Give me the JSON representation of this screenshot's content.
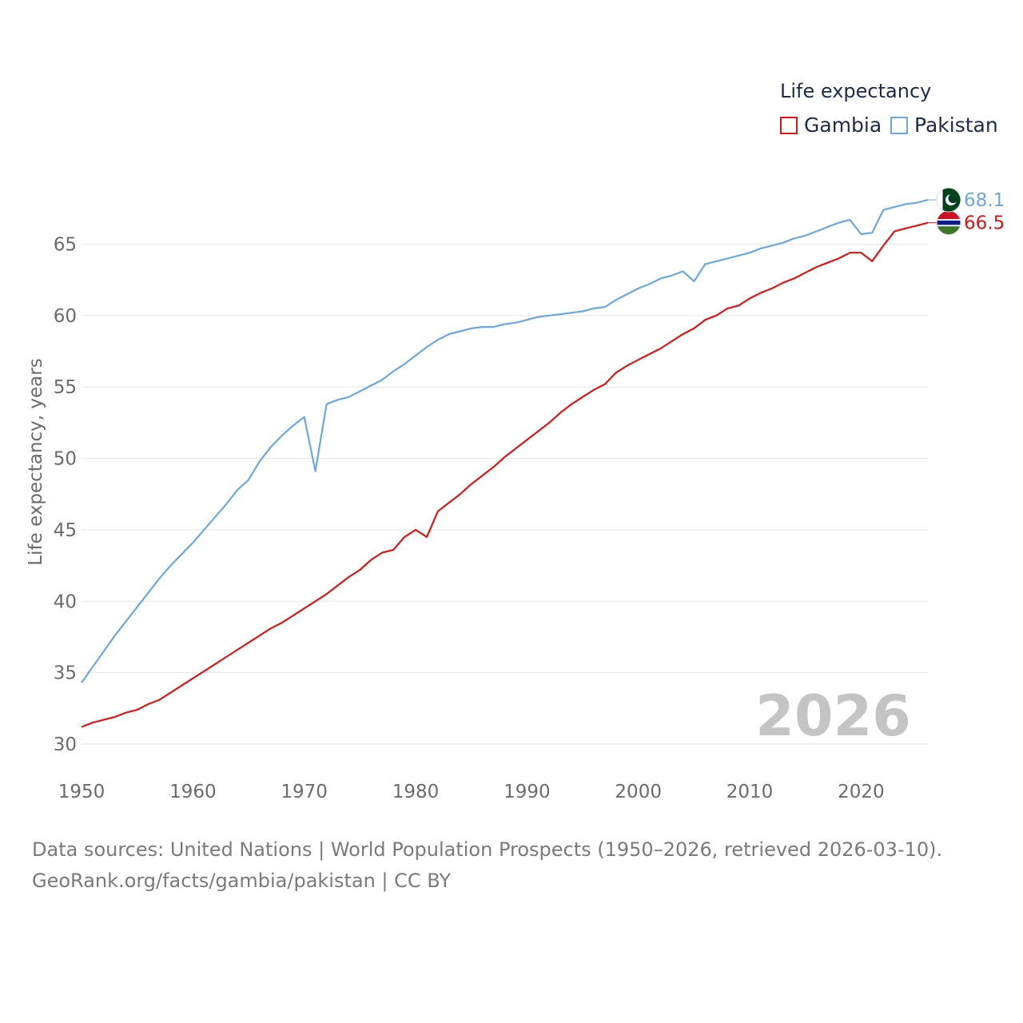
{
  "chart_data": {
    "type": "line",
    "ylabel": "Life expectancy, years",
    "xlabel": "",
    "xlim": [
      1950,
      2026
    ],
    "ylim": [
      30,
      69
    ],
    "x_ticks": [
      1950,
      1960,
      1970,
      1980,
      1990,
      2000,
      2010,
      2020
    ],
    "y_ticks": [
      30,
      35,
      40,
      45,
      50,
      55,
      60,
      65
    ],
    "grid": true,
    "year_label": "2026",
    "legend": {
      "title": "Life expectancy",
      "placement": "top-right"
    },
    "x": [
      1950,
      1951,
      1952,
      1953,
      1954,
      1955,
      1956,
      1957,
      1958,
      1959,
      1960,
      1961,
      1962,
      1963,
      1964,
      1965,
      1966,
      1967,
      1968,
      1969,
      1970,
      1971,
      1972,
      1973,
      1974,
      1975,
      1976,
      1977,
      1978,
      1979,
      1980,
      1981,
      1982,
      1983,
      1984,
      1985,
      1986,
      1987,
      1988,
      1989,
      1990,
      1991,
      1992,
      1993,
      1994,
      1995,
      1996,
      1997,
      1998,
      1999,
      2000,
      2001,
      2002,
      2003,
      2004,
      2005,
      2006,
      2007,
      2008,
      2009,
      2010,
      2011,
      2012,
      2013,
      2014,
      2015,
      2016,
      2017,
      2018,
      2019,
      2020,
      2021,
      2022,
      2023,
      2024,
      2025,
      2026
    ],
    "series": [
      {
        "name": "Gambia",
        "color": "#e11414",
        "end_label": "66.5",
        "flag": "gambia-flag",
        "values": [
          31.2,
          31.5,
          31.7,
          31.9,
          32.2,
          32.4,
          32.8,
          33.1,
          33.6,
          34.1,
          34.6,
          35.1,
          35.6,
          36.1,
          36.6,
          37.1,
          37.6,
          38.1,
          38.5,
          39.0,
          39.5,
          40.0,
          40.5,
          41.1,
          41.7,
          42.2,
          42.9,
          43.4,
          43.6,
          44.5,
          45.0,
          44.5,
          46.3,
          46.9,
          47.5,
          48.2,
          48.8,
          49.4,
          50.1,
          50.7,
          51.3,
          51.9,
          52.5,
          53.2,
          53.8,
          54.3,
          54.8,
          55.2,
          56.0,
          56.5,
          56.9,
          57.3,
          57.7,
          58.2,
          58.7,
          59.1,
          59.7,
          60.0,
          60.5,
          60.7,
          61.2,
          61.6,
          61.9,
          62.3,
          62.6,
          63.0,
          63.4,
          63.7,
          64.0,
          64.4,
          64.4,
          63.8,
          64.9,
          65.9,
          66.1,
          66.3,
          66.5
        ]
      },
      {
        "name": "Pakistan",
        "color": "#6aa8e4",
        "end_label": "68.1",
        "flag": "pakistan-flag",
        "values": [
          34.3,
          35.4,
          36.5,
          37.6,
          38.6,
          39.6,
          40.6,
          41.6,
          42.5,
          43.3,
          44.1,
          45.0,
          45.9,
          46.8,
          47.8,
          48.5,
          49.8,
          50.8,
          51.6,
          52.3,
          52.9,
          49.1,
          53.8,
          54.1,
          54.3,
          54.7,
          55.1,
          55.5,
          56.1,
          56.6,
          57.2,
          57.8,
          58.3,
          58.7,
          58.9,
          59.1,
          59.2,
          59.2,
          59.4,
          59.5,
          59.7,
          59.9,
          60.0,
          60.1,
          60.2,
          60.3,
          60.5,
          60.6,
          61.1,
          61.5,
          61.9,
          62.2,
          62.6,
          62.8,
          63.1,
          62.4,
          63.6,
          63.8,
          64.0,
          64.2,
          64.4,
          64.7,
          64.9,
          65.1,
          65.4,
          65.6,
          65.9,
          66.2,
          66.5,
          66.7,
          65.7,
          65.8,
          67.4,
          67.6,
          67.8,
          67.9,
          68.1
        ]
      }
    ]
  },
  "footer": {
    "source_line": "Data sources: United Nations | World Population Prospects (1950–2026, retrieved 2026-03-10).",
    "credit_line": "GeoRank.org/facts/gambia/pakistan | CC BY"
  }
}
